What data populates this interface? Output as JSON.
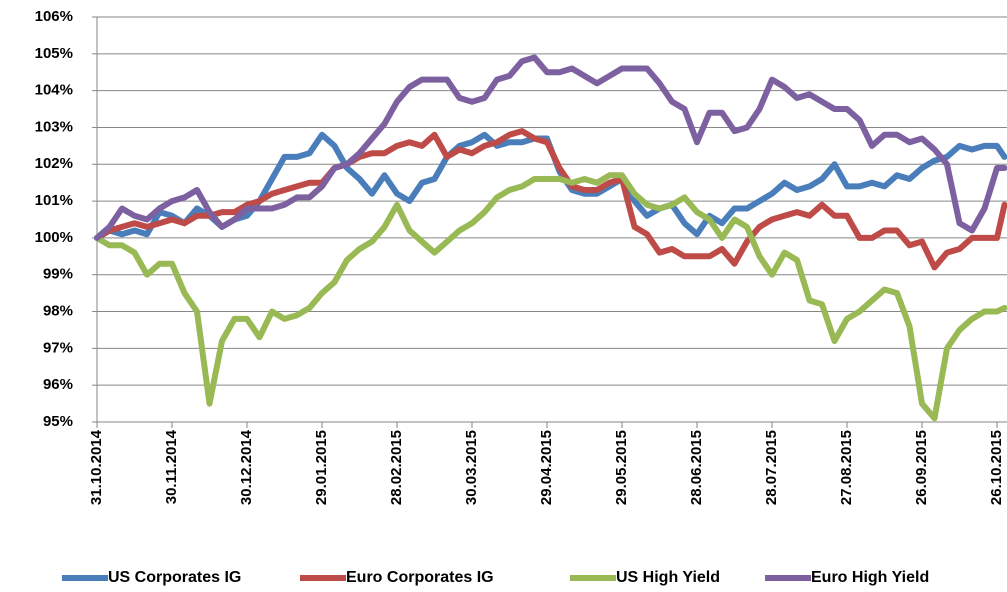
{
  "chart_data": {
    "type": "line",
    "grid": true,
    "legend": "bottom",
    "ylim": [
      95,
      106
    ],
    "yticks": [
      {
        "value": 95,
        "label": "95%"
      },
      {
        "value": 96,
        "label": "96%"
      },
      {
        "value": 97,
        "label": "97%"
      },
      {
        "value": 98,
        "label": "98%"
      },
      {
        "value": 99,
        "label": "99%"
      },
      {
        "value": 100,
        "label": "100%"
      },
      {
        "value": 101,
        "label": "101%"
      },
      {
        "value": 102,
        "label": "102%"
      },
      {
        "value": 103,
        "label": "103%"
      },
      {
        "value": 104,
        "label": "104%"
      },
      {
        "value": 105,
        "label": "105%"
      },
      {
        "value": 106,
        "label": "106%"
      }
    ],
    "xlim": [
      "31.10.2014",
      "30.10.2015"
    ],
    "xticks": [
      "31.10.2014",
      "30.11.2014",
      "30.12.2014",
      "29.01.2015",
      "28.02.2015",
      "30.03.2015",
      "29.04.2015",
      "29.05.2015",
      "28.06.2015",
      "28.07.2015",
      "27.08.2015",
      "26.09.2015",
      "26.10.2015"
    ],
    "x": [
      "31.10.2014",
      "05.11.2014",
      "10.11.2014",
      "15.11.2014",
      "20.11.2014",
      "25.11.2014",
      "30.11.2014",
      "05.12.2014",
      "10.12.2014",
      "15.12.2014",
      "20.12.2014",
      "25.12.2014",
      "30.12.2014",
      "04.01.2015",
      "09.01.2015",
      "14.01.2015",
      "19.01.2015",
      "24.01.2015",
      "29.01.2015",
      "03.02.2015",
      "08.02.2015",
      "13.02.2015",
      "18.02.2015",
      "23.02.2015",
      "28.02.2015",
      "05.03.2015",
      "10.03.2015",
      "15.03.2015",
      "20.03.2015",
      "25.03.2015",
      "30.03.2015",
      "04.04.2015",
      "09.04.2015",
      "14.04.2015",
      "19.04.2015",
      "24.04.2015",
      "29.04.2015",
      "04.05.2015",
      "09.05.2015",
      "14.05.2015",
      "19.05.2015",
      "24.05.2015",
      "29.05.2015",
      "03.06.2015",
      "08.06.2015",
      "13.06.2015",
      "18.06.2015",
      "23.06.2015",
      "28.06.2015",
      "03.07.2015",
      "08.07.2015",
      "13.07.2015",
      "18.07.2015",
      "23.07.2015",
      "28.07.2015",
      "02.08.2015",
      "07.08.2015",
      "12.08.2015",
      "17.08.2015",
      "22.08.2015",
      "27.08.2015",
      "01.09.2015",
      "06.09.2015",
      "11.09.2015",
      "16.09.2015",
      "21.09.2015",
      "26.09.2015",
      "01.10.2015",
      "06.10.2015",
      "11.10.2015",
      "16.10.2015",
      "21.10.2015",
      "26.10.2015",
      "29.10.2015"
    ],
    "series": [
      {
        "name": "US Corporates IG",
        "color": "#4a7ebb",
        "values": [
          100,
          100.2,
          100.1,
          100.2,
          100.1,
          100.7,
          100.6,
          100.4,
          100.8,
          100.6,
          100.3,
          100.5,
          100.6,
          101,
          101.6,
          102.2,
          102.2,
          102.3,
          102.8,
          102.5,
          101.9,
          101.6,
          101.2,
          101.7,
          101.2,
          101,
          101.5,
          101.6,
          102.2,
          102.5,
          102.6,
          102.8,
          102.5,
          102.6,
          102.6,
          102.7,
          102.7,
          101.8,
          101.3,
          101.2,
          101.2,
          101.4,
          101.6,
          101,
          100.6,
          100.8,
          100.9,
          100.4,
          100.1,
          100.6,
          100.4,
          100.8,
          100.8,
          101,
          101.2,
          101.5,
          101.3,
          101.4,
          101.6,
          102,
          101.4,
          101.4,
          101.5,
          101.4,
          101.7,
          101.6,
          101.9,
          102.1,
          102.2,
          102.5,
          102.4,
          102.5,
          102.5,
          102.2
        ]
      },
      {
        "name": "Euro Corporates IG",
        "color": "#be4b48",
        "values": [
          100,
          100.2,
          100.3,
          100.4,
          100.3,
          100.4,
          100.5,
          100.4,
          100.6,
          100.6,
          100.7,
          100.7,
          100.9,
          101,
          101.2,
          101.3,
          101.4,
          101.5,
          101.5,
          101.9,
          102,
          102.2,
          102.3,
          102.3,
          102.5,
          102.6,
          102.5,
          102.8,
          102.2,
          102.4,
          102.3,
          102.5,
          102.6,
          102.8,
          102.9,
          102.7,
          102.6,
          101.9,
          101.4,
          101.3,
          101.3,
          101.5,
          101.6,
          100.3,
          100.1,
          99.6,
          99.7,
          99.5,
          99.5,
          99.5,
          99.7,
          99.3,
          99.9,
          100.3,
          100.5,
          100.6,
          100.7,
          100.6,
          100.9,
          100.6,
          100.6,
          100,
          100,
          100.2,
          100.2,
          99.8,
          99.9,
          99.2,
          99.6,
          99.7,
          100,
          100,
          100,
          100.9
        ]
      },
      {
        "name": "US High Yield",
        "color": "#98b954",
        "values": [
          100,
          99.8,
          99.8,
          99.6,
          99,
          99.3,
          99.3,
          98.5,
          98,
          95.5,
          97.2,
          97.8,
          97.8,
          97.3,
          98,
          97.8,
          97.9,
          98.1,
          98.5,
          98.8,
          99.4,
          99.7,
          99.9,
          100.3,
          100.9,
          100.2,
          99.9,
          99.6,
          99.9,
          100.2,
          100.4,
          100.7,
          101.1,
          101.3,
          101.4,
          101.6,
          101.6,
          101.6,
          101.5,
          101.6,
          101.5,
          101.7,
          101.7,
          101.2,
          100.9,
          100.8,
          100.9,
          101.1,
          100.7,
          100.5,
          100,
          100.5,
          100.3,
          99.5,
          99,
          99.6,
          99.4,
          98.3,
          98.2,
          97.2,
          97.8,
          98,
          98.3,
          98.6,
          98.5,
          97.6,
          95.5,
          95.1,
          97,
          97.5,
          97.8,
          98,
          98,
          98.1
        ]
      },
      {
        "name": "Euro High Yield",
        "color": "#7d60a0",
        "values": [
          100,
          100.3,
          100.8,
          100.6,
          100.5,
          100.8,
          101,
          101.1,
          101.3,
          100.7,
          100.3,
          100.5,
          100.8,
          100.8,
          100.8,
          100.9,
          101.1,
          101.1,
          101.4,
          101.9,
          102,
          102.3,
          102.7,
          103.1,
          103.7,
          104.1,
          104.3,
          104.3,
          104.3,
          103.8,
          103.7,
          103.8,
          104.3,
          104.4,
          104.8,
          104.9,
          104.5,
          104.5,
          104.6,
          104.4,
          104.2,
          104.4,
          104.6,
          104.6,
          104.6,
          104.2,
          103.7,
          103.5,
          102.6,
          103.4,
          103.4,
          102.9,
          103,
          103.5,
          104.3,
          104.1,
          103.8,
          103.9,
          103.7,
          103.5,
          103.5,
          103.2,
          102.5,
          102.8,
          102.8,
          102.6,
          102.7,
          102.4,
          102,
          100.4,
          100.2,
          100.8,
          101.9,
          101.9
        ]
      }
    ]
  }
}
